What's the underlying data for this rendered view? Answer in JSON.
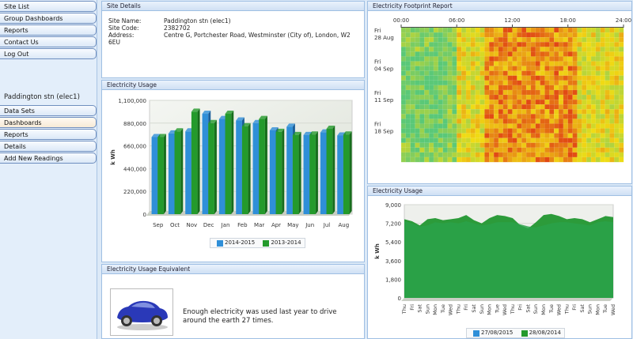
{
  "sidebar": {
    "top_items": [
      {
        "label": "Site List"
      },
      {
        "label": "Group Dashboards"
      },
      {
        "label": "Reports"
      },
      {
        "label": "Contact Us"
      },
      {
        "label": "Log Out"
      }
    ],
    "site_heading": "Paddington stn (elec1)",
    "site_items": [
      {
        "label": "Data Sets"
      },
      {
        "label": "Dashboards",
        "active": true
      },
      {
        "label": "Reports"
      },
      {
        "label": "Details"
      },
      {
        "label": "Add New Readings"
      }
    ]
  },
  "site_details": {
    "title": "Site Details",
    "name_label": "Site Name:",
    "name_value": "Paddington stn (elec1)",
    "code_label": "Site Code:",
    "code_value": "2382702",
    "address_label": "Address:",
    "address_line1": "Centre G, Portchester Road, Westminster (City of), London, W2",
    "address_line2": "6EU"
  },
  "usage_left": {
    "title": "Electricity Usage"
  },
  "equivalent": {
    "title": "Electricity Usage Equivalent",
    "text_line1": "Enough electricity was used last year to drive",
    "text_line2": "around the earth 27 times.",
    "image_icon": "car-image"
  },
  "footprint": {
    "title": "Electricity Footprint Report"
  },
  "usage_right": {
    "title": "Electricity Usage"
  },
  "colors": {
    "series_a": "#2f8fd8",
    "series_b": "#249a2c",
    "heat_low": "#7fd0a0",
    "heat_high": "#d41010"
  },
  "chart_data": [
    {
      "type": "bar",
      "title": "",
      "ylabel": "k Wh",
      "ylim": [
        0,
        1100000
      ],
      "yticks": [
        "0",
        "220,000",
        "440,000",
        "660,000",
        "880,000",
        "1,100,000"
      ],
      "categories": [
        "Sep",
        "Oct",
        "Nov",
        "Dec",
        "Jan",
        "Feb",
        "Mar",
        "Apr",
        "May",
        "Jun",
        "Jul",
        "Aug"
      ],
      "series": [
        {
          "name": "2014-2015",
          "values": [
            745000,
            780000,
            800000,
            970000,
            920000,
            905000,
            880000,
            810000,
            845000,
            765000,
            790000,
            760000
          ]
        },
        {
          "name": "2013-2014",
          "values": [
            745000,
            800000,
            990000,
            880000,
            970000,
            850000,
            920000,
            795000,
            765000,
            770000,
            825000,
            770000
          ]
        }
      ],
      "grid": true,
      "legend": "bottom"
    },
    {
      "type": "heatmap",
      "title": "",
      "xticks": [
        "00:00",
        "06:00",
        "12:00",
        "18:00",
        "24:00"
      ],
      "ylabels": [
        {
          "day": "Fri",
          "date": "28 Aug"
        },
        {
          "day": "Fri",
          "date": "04 Sep"
        },
        {
          "day": "Fri",
          "date": "11 Sep"
        },
        {
          "day": "Fri",
          "date": "18 Sep"
        }
      ],
      "cols": 48,
      "rows": 28,
      "legend": "none"
    },
    {
      "type": "area",
      "title": "",
      "ylabel": "k Wh",
      "ylim": [
        0,
        9000
      ],
      "yticks": [
        "0",
        "1,800",
        "3,600",
        "5,400",
        "7,200",
        "9,000"
      ],
      "categories": [
        "Thu",
        "Fri",
        "Sat",
        "Sun",
        "Mon",
        "Tue",
        "Wed",
        "Thu",
        "Fri",
        "Sat",
        "Sun",
        "Mon",
        "Tue",
        "Wed",
        "Thu",
        "Fri",
        "Sat",
        "Sun",
        "Mon",
        "Tue",
        "Wed",
        "Thu",
        "Fri",
        "Sat",
        "Sun",
        "Mon",
        "Tue",
        "Wed"
      ],
      "series": [
        {
          "name": "27/08/2015",
          "values": [
            7400,
            7200,
            6900,
            7000,
            7300,
            7200,
            7300,
            7200,
            7400,
            7200,
            7000,
            7100,
            7300,
            7300,
            7300,
            7100,
            6900,
            6800,
            7000,
            7200,
            7300,
            7300,
            7200,
            7100,
            7000,
            7300,
            7400,
            7300
          ]
        },
        {
          "name": "28/08/2014",
          "values": [
            7600,
            7400,
            7000,
            7600,
            7700,
            7500,
            7600,
            7700,
            8000,
            7500,
            7200,
            7700,
            8000,
            7900,
            7700,
            7000,
            6700,
            7300,
            8000,
            8100,
            7900,
            7600,
            7700,
            7600,
            7300,
            7600,
            7900,
            7800
          ]
        }
      ],
      "grid": true,
      "legend": "bottom"
    }
  ]
}
